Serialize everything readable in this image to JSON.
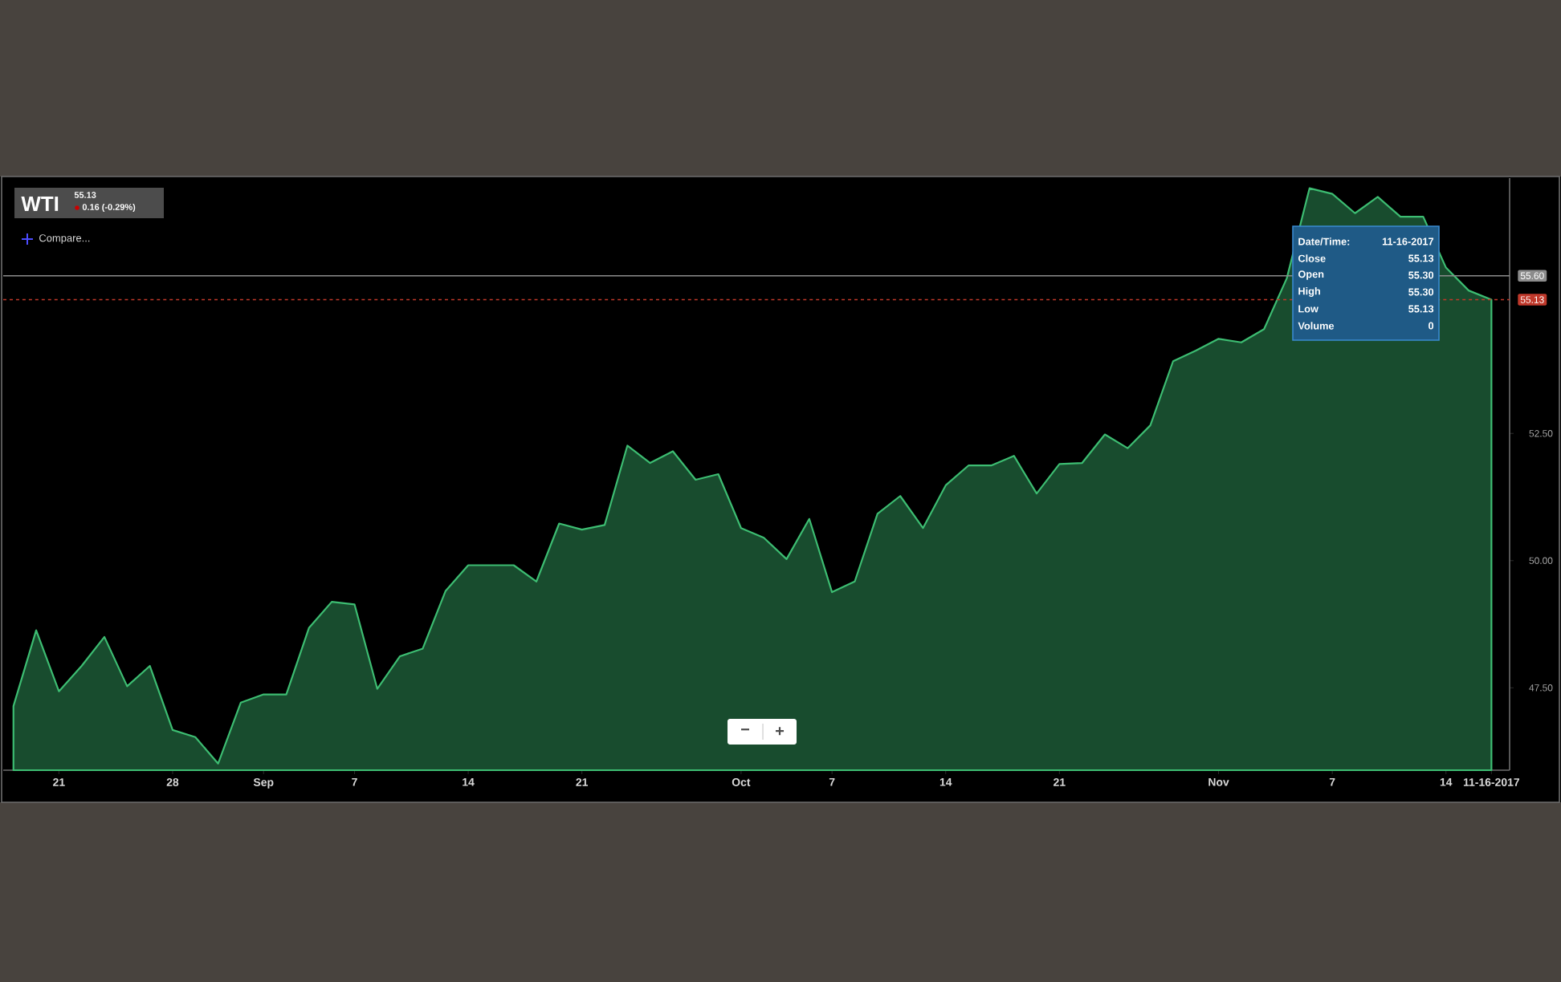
{
  "chart_data": {
    "type": "area",
    "title": "WTI",
    "categories": [
      null,
      null,
      "21",
      null,
      null,
      null,
      null,
      "28",
      null,
      null,
      null,
      "Sep",
      null,
      null,
      null,
      "7",
      null,
      null,
      null,
      null,
      "14",
      null,
      null,
      null,
      null,
      "21",
      null,
      null,
      null,
      null,
      null,
      null,
      "Oct",
      null,
      null,
      null,
      "7",
      null,
      null,
      null,
      null,
      "14",
      null,
      null,
      null,
      null,
      "21",
      null,
      null,
      null,
      null,
      null,
      null,
      "Nov",
      null,
      null,
      null,
      null,
      "7",
      null,
      null,
      null,
      null,
      "14",
      null,
      "11-16-2017"
    ],
    "values": [
      47.14,
      48.63,
      47.43,
      47.93,
      48.5,
      47.53,
      47.93,
      46.67,
      46.53,
      46.01,
      47.21,
      47.37,
      47.37,
      48.68,
      49.19,
      49.14,
      47.48,
      48.12,
      48.27,
      49.4,
      49.91,
      49.91,
      49.91,
      49.59,
      50.73,
      50.61,
      50.7,
      52.26,
      51.92,
      52.15,
      51.59,
      51.7,
      50.64,
      50.45,
      50.03,
      50.82,
      49.38,
      49.59,
      50.92,
      51.27,
      50.64,
      51.48,
      51.87,
      51.87,
      52.06,
      51.32,
      51.9,
      51.92,
      52.48,
      52.21,
      52.66,
      53.92,
      54.13,
      54.36,
      54.29,
      54.55,
      55.55,
      57.32,
      57.21,
      56.83,
      57.15,
      56.76,
      56.76,
      55.76,
      55.31,
      55.13
    ],
    "color": "#3dbd72",
    "ylim": [
      45.88,
      57.52
    ],
    "yticks": [
      {
        "value": 47.5,
        "label": "47.50"
      },
      {
        "value": 50,
        "label": "50.00"
      },
      {
        "value": 52.5,
        "label": "52.50"
      }
    ],
    "ref_lines": [
      {
        "axis": "y",
        "value": 55.13,
        "label": "55.13",
        "color": "#c0392b",
        "line_style": "dashed"
      },
      {
        "axis": "y",
        "value": 55.6,
        "label": "55.60",
        "color": "#8c8c8c",
        "line_style": "solid"
      }
    ],
    "annotations": [
      "55.13",
      "0.16 (-0.29%)",
      "Compare...",
      "Date/Time:",
      "11-16-2017",
      "Close",
      "55.13",
      "Open",
      "55.30",
      "High",
      "55.30",
      "Low",
      "55.13",
      "Volume",
      "0",
      "−",
      "+"
    ]
  }
}
